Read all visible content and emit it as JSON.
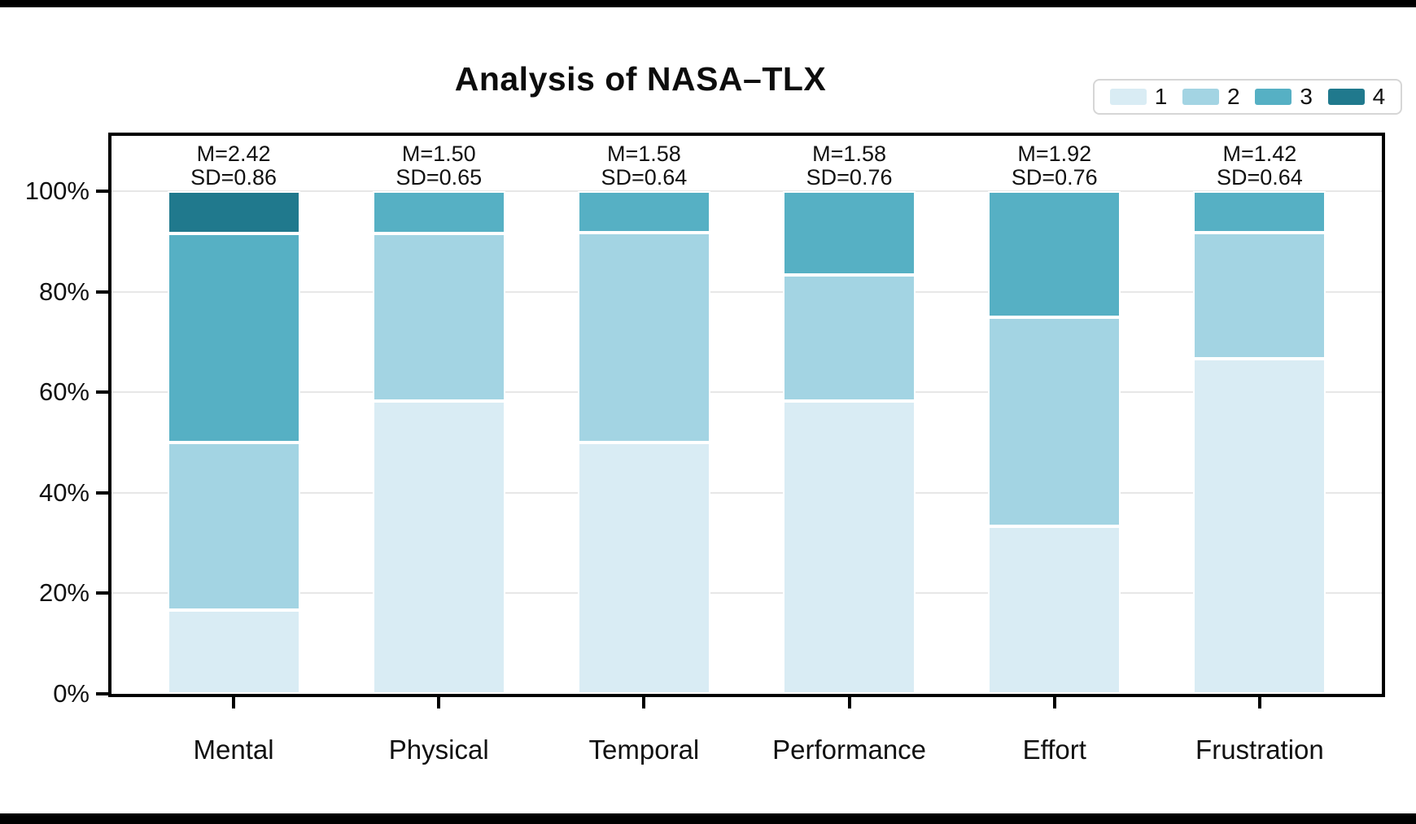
{
  "title": "Analysis of NASA–TLX",
  "legend": {
    "entries": [
      {
        "label": "1",
        "color": "#d9ecf4"
      },
      {
        "label": "2",
        "color": "#a3d4e3"
      },
      {
        "label": "3",
        "color": "#56b0c4"
      },
      {
        "label": "4",
        "color": "#20798d"
      }
    ]
  },
  "chart_data": {
    "type": "bar",
    "stacked": true,
    "title": "Analysis of NASA–TLX",
    "categories": [
      "Mental",
      "Physical",
      "Temporal",
      "Performance",
      "Effort",
      "Frustration"
    ],
    "series": [
      {
        "name": "1",
        "color": "#d9ecf4",
        "values": [
          16.67,
          58.33,
          50.0,
          58.33,
          33.33,
          66.67
        ]
      },
      {
        "name": "2",
        "color": "#a3d4e3",
        "values": [
          33.33,
          33.33,
          41.67,
          25.0,
          41.67,
          25.0
        ]
      },
      {
        "name": "3",
        "color": "#56b0c4",
        "values": [
          41.67,
          8.33,
          8.33,
          16.67,
          25.0,
          8.33
        ]
      },
      {
        "name": "4",
        "color": "#20798d",
        "values": [
          8.33,
          0,
          0,
          0,
          0,
          0
        ]
      }
    ],
    "annotations": [
      {
        "mean": "M=2.42",
        "sd": "SD=0.86"
      },
      {
        "mean": "M=1.50",
        "sd": "SD=0.65"
      },
      {
        "mean": "M=1.58",
        "sd": "SD=0.64"
      },
      {
        "mean": "M=1.58",
        "sd": "SD=0.76"
      },
      {
        "mean": "M=1.92",
        "sd": "SD=0.76"
      },
      {
        "mean": "M=1.42",
        "sd": "SD=0.64"
      }
    ],
    "yticks": [
      {
        "label": "0%",
        "value": 0
      },
      {
        "label": "20%",
        "value": 20
      },
      {
        "label": "40%",
        "value": 40
      },
      {
        "label": "60%",
        "value": 60
      },
      {
        "label": "80%",
        "value": 80
      },
      {
        "label": "100%",
        "value": 100
      }
    ],
    "ylim": [
      0,
      100
    ],
    "grid": true,
    "legend_position": "top-right"
  }
}
